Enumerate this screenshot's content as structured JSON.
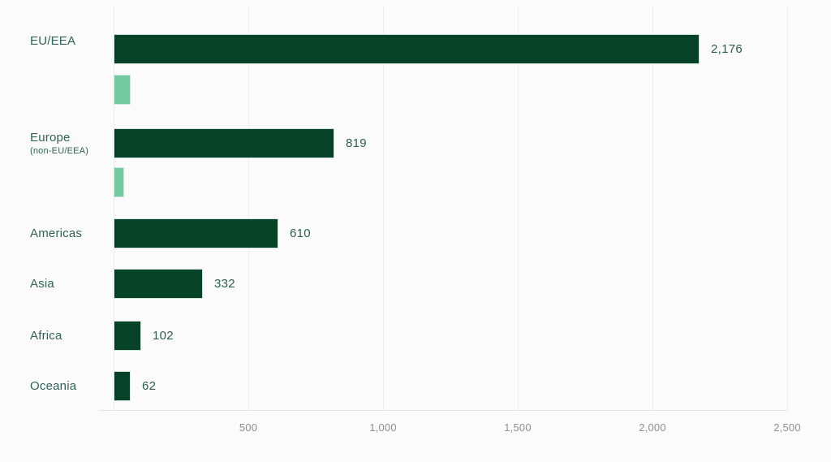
{
  "page": {
    "background_color": "#fbfbfb"
  },
  "chart_data": {
    "type": "bar",
    "orientation": "horizontal",
    "title": "",
    "categories": [
      {
        "label": "EU/EEA",
        "sublabel": ""
      },
      {
        "label": "Europe",
        "sublabel": "(non-EU/EEA)"
      },
      {
        "label": "Americas",
        "sublabel": ""
      },
      {
        "label": "Asia",
        "sublabel": ""
      },
      {
        "label": "Africa",
        "sublabel": ""
      },
      {
        "label": "Oceania",
        "sublabel": ""
      }
    ],
    "series": [
      {
        "name": "primary",
        "color": "#054228",
        "values": [
          2176,
          819,
          610,
          332,
          102,
          62
        ],
        "value_labels": [
          "2,176",
          "819",
          "610",
          "332",
          "102",
          "62"
        ]
      },
      {
        "name": "secondary",
        "color": "#73caa0",
        "values": [
          62,
          39,
          null,
          null,
          null,
          null
        ],
        "value_labels": [
          null,
          null,
          null,
          null,
          null,
          null
        ]
      }
    ],
    "xlim": [
      0,
      2500
    ],
    "xticks": [
      {
        "value": 500,
        "label": "500"
      },
      {
        "value": 1000,
        "label": "1,000"
      },
      {
        "value": 1500,
        "label": "1,500"
      },
      {
        "value": 2000,
        "label": "2,000"
      },
      {
        "value": 2500,
        "label": "2,500"
      }
    ],
    "grid": true,
    "legend": "none",
    "colors": {
      "grid": "#ececec",
      "axis_line": "#e4e4e4",
      "tick_text": "#8f8f8f",
      "category_text": "#2f6354",
      "value_text": "#2b5f4b"
    }
  }
}
